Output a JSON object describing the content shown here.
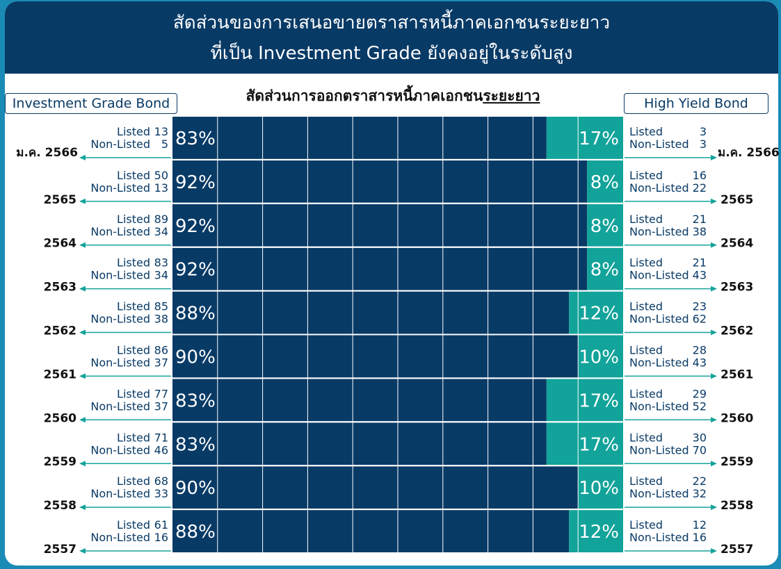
{
  "header": {
    "title_line1": "สัดส่วนของการเสนอขายตราสารหนี้ภาคเอกชนระยะยาว",
    "title_line2": "ที่เป็น Investment Grade ยังคงอยู่ในระดับสูง"
  },
  "chart_data": {
    "type": "bar",
    "title_prefix": "สัดส่วนการออกตราสารหนี้ภาคเอกชน",
    "title_underlined": "ระยะยาว",
    "legend_left": "Investment Grade Bond",
    "legend_right": "High Yield Bond",
    "listed_label": "Listed",
    "nonlisted_label": "Non-Listed",
    "colors": {
      "investment_grade": "#083a66",
      "high_yield": "#12a39a",
      "arrow": "#15a39a"
    },
    "categories": [
      "ม.ค. 2566",
      "2565",
      "2564",
      "2563",
      "2562",
      "2561",
      "2560",
      "2559",
      "2558",
      "2557"
    ],
    "investment_grade_pct": [
      "83%",
      "92%",
      "92%",
      "92%",
      "88%",
      "90%",
      "83%",
      "83%",
      "90%",
      "88%"
    ],
    "high_yield_pct": [
      "17%",
      "8%",
      "8%",
      "8%",
      "12%",
      "10%",
      "17%",
      "17%",
      "10%",
      "12%"
    ],
    "investment_grade_share": [
      83,
      92,
      92,
      92,
      88,
      90,
      83,
      83,
      90,
      88
    ],
    "series": [
      {
        "name": "Investment Grade Bond Listed",
        "values": [
          13,
          50,
          89,
          83,
          85,
          86,
          77,
          71,
          68,
          61
        ]
      },
      {
        "name": "Investment Grade Bond Non-Listed",
        "values": [
          5,
          13,
          34,
          34,
          38,
          37,
          37,
          46,
          33,
          16
        ]
      },
      {
        "name": "High Yield Bond Listed",
        "values": [
          3,
          16,
          21,
          21,
          23,
          28,
          29,
          30,
          22,
          12
        ]
      },
      {
        "name": "High Yield Bond Non-Listed",
        "values": [
          3,
          22,
          38,
          43,
          62,
          43,
          52,
          70,
          32,
          16
        ]
      }
    ]
  }
}
